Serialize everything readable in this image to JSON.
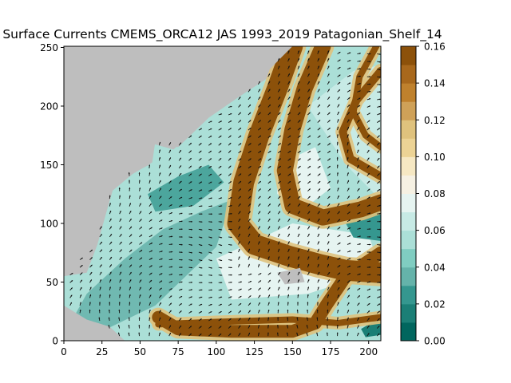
{
  "chart_data": {
    "type": "heatmap",
    "title": "Surface Currents CMEMS_ORCA12 JAS 1993_2019 Patagonian_Shelf_14",
    "xlabel": "",
    "ylabel": "",
    "xlim": [
      0,
      208
    ],
    "ylim": [
      0,
      251
    ],
    "x_ticks": [
      0,
      25,
      50,
      75,
      100,
      125,
      150,
      175,
      200
    ],
    "y_ticks": [
      0,
      50,
      100,
      150,
      200,
      250
    ],
    "quiver": true,
    "land_color": "#bebebe",
    "colorbar": {
      "vmin": 0.0,
      "vmax": 0.16,
      "ticks": [
        "0.00",
        "0.02",
        "0.04",
        "0.06",
        "0.08",
        "0.10",
        "0.12",
        "0.14",
        "0.16"
      ],
      "levels": [
        0.0,
        0.01,
        0.02,
        0.03,
        0.04,
        0.05,
        0.06,
        0.07,
        0.08,
        0.09,
        0.1,
        0.11,
        0.12,
        0.13,
        0.14,
        0.15,
        0.16
      ],
      "colors": [
        "#01665e",
        "#1b7f76",
        "#35978f",
        "#65b3aa",
        "#80cdc1",
        "#abdfd7",
        "#c7eae5",
        "#e6f4f1",
        "#f6f1e3",
        "#f6e8c3",
        "#ecd395",
        "#dfc27d",
        "#cfa158",
        "#bf812d",
        "#a8681c",
        "#8c510a"
      ]
    }
  }
}
